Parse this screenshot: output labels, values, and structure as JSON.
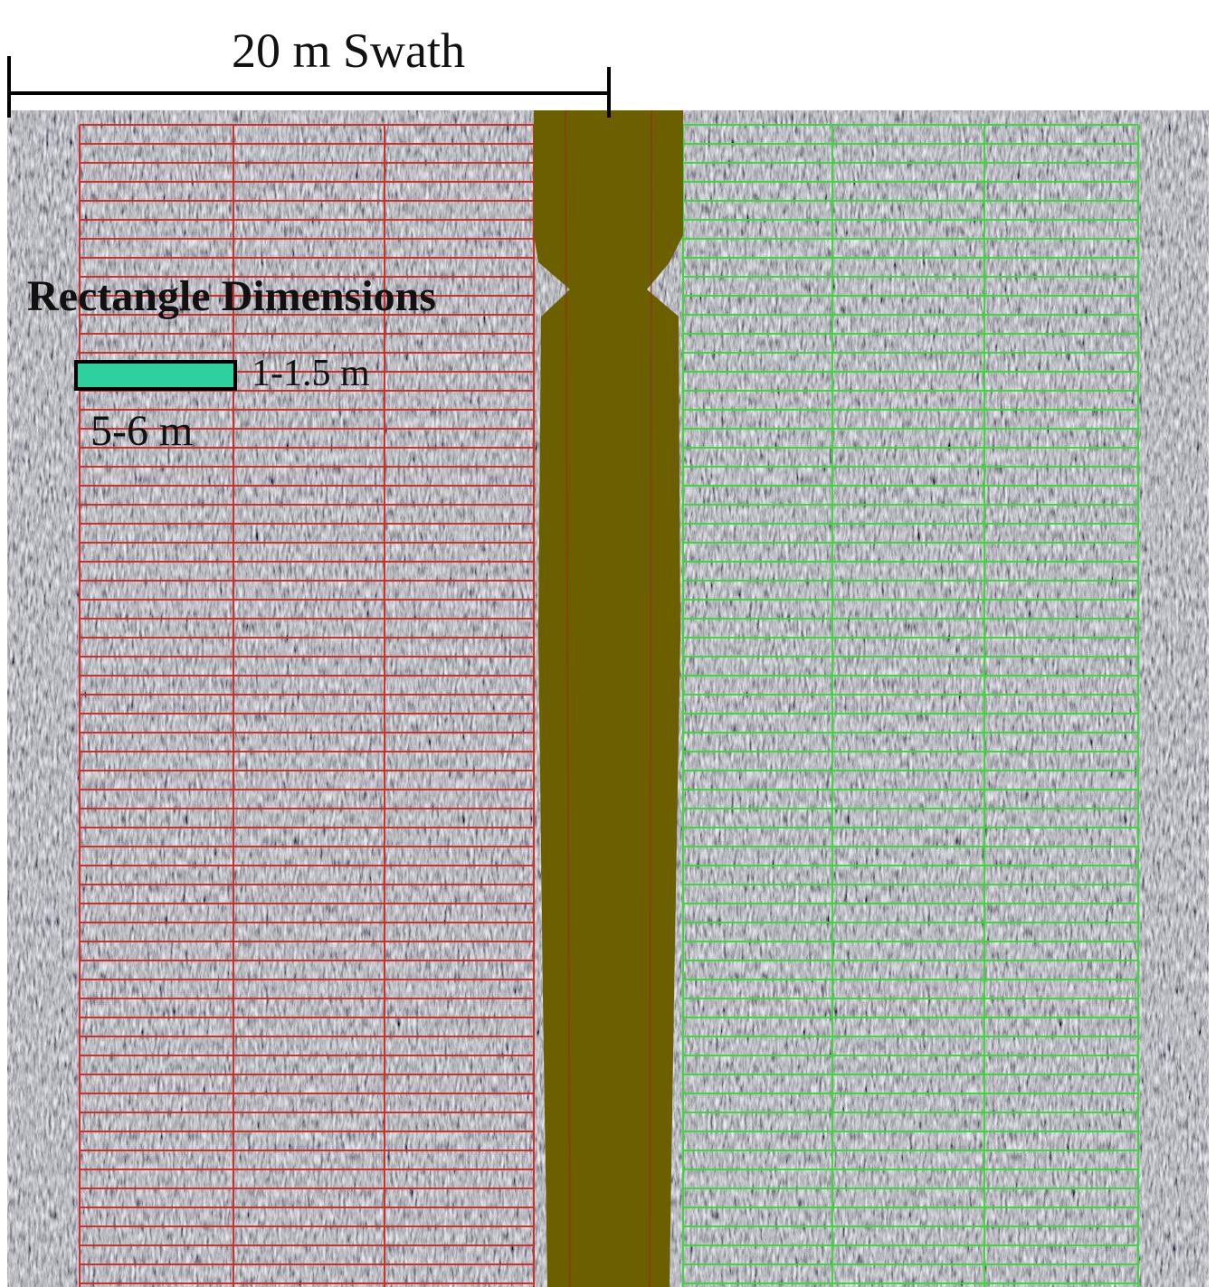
{
  "scale_bar": {
    "label": "20 m Swath"
  },
  "legend": {
    "title": "Rectangle Dimensions",
    "width_label": "1-1.5 m",
    "length_label": "5-6 m"
  }
}
